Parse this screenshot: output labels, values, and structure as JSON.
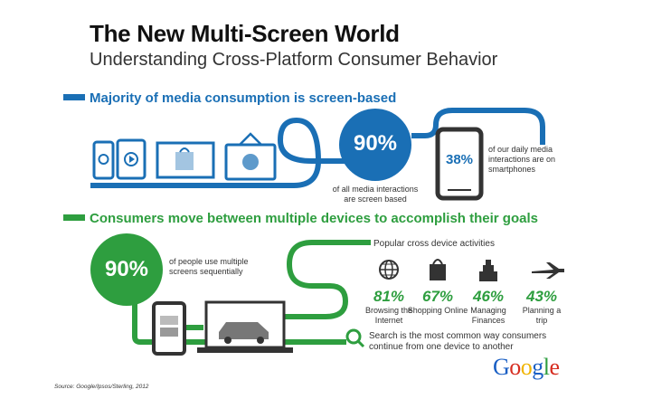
{
  "header": {
    "title": "The New Multi-Screen World",
    "subtitle": "Understanding Cross-Platform Consumer Behavior"
  },
  "section1": {
    "heading": "Majority of media consumption is screen-based",
    "big_stat": "90%",
    "big_caption": "of all media interactions are screen based",
    "phone_stat": "38%",
    "phone_caption": "of our daily media interactions are on smartphones",
    "accent": "#1a6fb5"
  },
  "section2": {
    "heading": "Consumers move between multiple devices to accomplish their goals",
    "big_stat": "90%",
    "big_caption": "of people use multiple screens sequentially",
    "activities_title": "Popular cross device activities",
    "activities": [
      {
        "icon": "globe-icon",
        "percent": "81%",
        "label": "Browsing the Internet"
      },
      {
        "icon": "shopping-bag-icon",
        "percent": "67%",
        "label": "Shopping Online"
      },
      {
        "icon": "finance-bars-icon",
        "percent": "46%",
        "label": "Managing Finances"
      },
      {
        "icon": "airplane-icon",
        "percent": "43%",
        "label": "Planning a trip"
      }
    ],
    "search_note": "Search is the most common way consumers continue from one device to another",
    "accent": "#2e9e3f"
  },
  "footer": {
    "source": "Source: Google/Ipsos/Sterling, 2012",
    "logo_text": "Google"
  }
}
